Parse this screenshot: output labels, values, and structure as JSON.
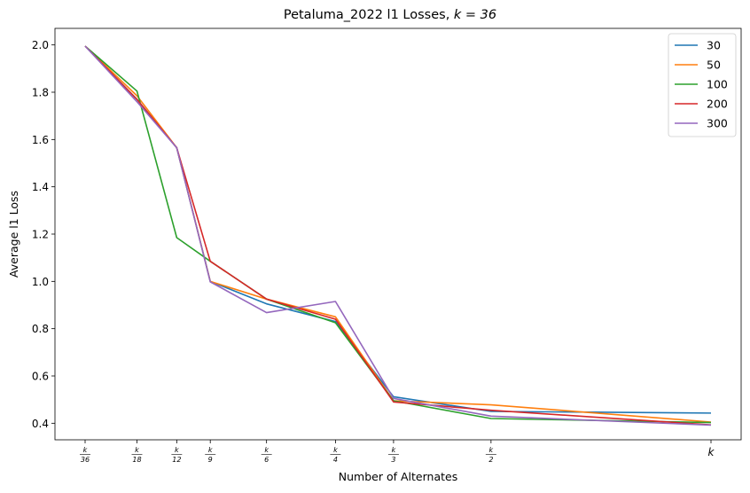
{
  "chart_data": {
    "type": "line",
    "title": "Petaluma_2022 l1 Losses, ",
    "title_math": "k = 36",
    "xlabel": "Number of Alternates",
    "ylabel": "Average l1 Loss",
    "x": [
      1,
      2,
      3,
      4,
      6,
      9,
      12,
      18,
      36
    ],
    "x_tick_labels": [
      {
        "num": "k",
        "den": "36"
      },
      {
        "num": "k",
        "den": "18"
      },
      {
        "num": "k",
        "den": "12"
      },
      {
        "num": "k",
        "den": "9"
      },
      {
        "num": "k",
        "den": "6"
      },
      {
        "num": "k",
        "den": "4"
      },
      {
        "num": "k",
        "den": "3"
      },
      {
        "num": "k",
        "den": "2"
      },
      {
        "num": "k",
        "den": ""
      }
    ],
    "x_scale": "sqrt",
    "xlim": [
      1,
      36
    ],
    "ylim": [
      0.33,
      2.07
    ],
    "y_ticks": [
      0.4,
      0.6,
      0.8,
      1.0,
      1.2,
      1.4,
      1.6,
      1.8,
      2.0
    ],
    "y_tick_labels": [
      "0.4",
      "0.6",
      "0.8",
      "1.0",
      "1.2",
      "1.4",
      "1.6",
      "1.8",
      "2.0"
    ],
    "legend_position": "top-right",
    "series": [
      {
        "name": "30",
        "color": "#1f77b4",
        "values": [
          1.995,
          1.77,
          1.565,
          1.0,
          0.905,
          0.83,
          0.512,
          0.45,
          0.443
        ]
      },
      {
        "name": "50",
        "color": "#ff7f0e",
        "values": [
          1.995,
          1.785,
          1.565,
          1.0,
          0.925,
          0.85,
          0.495,
          0.478,
          0.405
        ]
      },
      {
        "name": "100",
        "color": "#2ca02c",
        "values": [
          1.995,
          1.805,
          1.185,
          1.085,
          0.925,
          0.825,
          0.495,
          0.42,
          0.403
        ]
      },
      {
        "name": "200",
        "color": "#d62728",
        "values": [
          1.995,
          1.77,
          1.565,
          1.085,
          0.925,
          0.84,
          0.49,
          0.455,
          0.393
        ]
      },
      {
        "name": "300",
        "color": "#9467bd",
        "values": [
          1.995,
          1.76,
          1.565,
          0.998,
          0.868,
          0.915,
          0.505,
          0.43,
          0.392
        ]
      }
    ]
  }
}
